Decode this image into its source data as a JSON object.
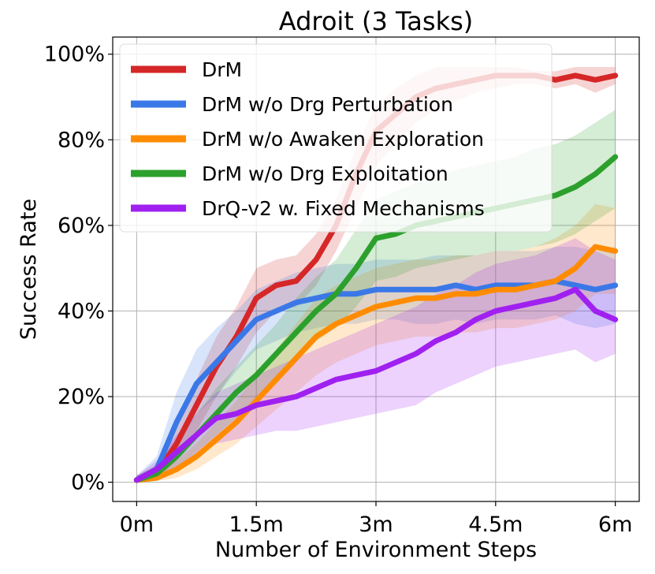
{
  "chart_data": {
    "type": "line",
    "title": "Adroit (3 Tasks)",
    "xlabel": "Number of Environment Steps",
    "ylabel": "Success Rate",
    "xlim": [
      -0.3,
      6.3
    ],
    "ylim": [
      -4.5,
      104
    ],
    "x_ticks": [
      {
        "value": 0,
        "label": "0m"
      },
      {
        "value": 1.5,
        "label": "1.5m"
      },
      {
        "value": 3,
        "label": "3m"
      },
      {
        "value": 4.5,
        "label": "4.5m"
      },
      {
        "value": 6,
        "label": "6m"
      }
    ],
    "y_ticks": [
      {
        "value": 0,
        "label": "0%"
      },
      {
        "value": 20,
        "label": "20%"
      },
      {
        "value": 40,
        "label": "40%"
      },
      {
        "value": 60,
        "label": "60%"
      },
      {
        "value": 80,
        "label": "80%"
      },
      {
        "value": 100,
        "label": "100%"
      }
    ],
    "grid": true,
    "legend_position": "top-left",
    "series": [
      {
        "name": "DrM",
        "color": "#d62728",
        "x": [
          0,
          0.25,
          0.5,
          0.75,
          1.0,
          1.25,
          1.5,
          1.75,
          2.0,
          2.25,
          2.5,
          2.75,
          3.0,
          3.25,
          3.5,
          3.75,
          4.0,
          4.25,
          4.5,
          4.75,
          5.0,
          5.25,
          5.5,
          5.75,
          6.0
        ],
        "y": [
          0.5,
          2,
          9,
          18,
          27,
          34,
          43,
          46,
          47,
          52,
          60,
          72,
          82,
          86,
          90,
          92,
          93,
          94,
          95,
          95,
          95,
          94,
          95,
          94,
          95
        ],
        "band_low": [
          0,
          0.5,
          5,
          12,
          20,
          27,
          35,
          40,
          41,
          46,
          54,
          64,
          74,
          79,
          84,
          87,
          89,
          91,
          92,
          93,
          93,
          92,
          93,
          91,
          93
        ],
        "band_high": [
          1.5,
          4,
          13,
          24,
          34,
          41,
          50,
          52,
          53,
          58,
          66,
          78,
          88,
          92,
          95,
          97,
          97,
          97,
          97,
          97,
          96,
          96,
          97,
          97,
          97
        ]
      },
      {
        "name": "DrM w/o Drg Perturbation",
        "color": "#3b78e7",
        "x": [
          0,
          0.25,
          0.5,
          0.75,
          1.0,
          1.25,
          1.5,
          1.75,
          2.0,
          2.25,
          2.5,
          2.75,
          3.0,
          3.25,
          3.5,
          3.75,
          4.0,
          4.25,
          4.5,
          4.75,
          5.0,
          5.25,
          5.5,
          5.75,
          6.0
        ],
        "y": [
          0.5,
          3,
          14,
          23,
          28,
          33,
          38,
          40,
          42,
          43,
          44,
          44,
          45,
          45,
          45,
          45,
          46,
          45,
          46,
          46,
          46,
          47,
          46,
          45,
          46
        ],
        "band_low": [
          0,
          1,
          8,
          16,
          20,
          26,
          31,
          33,
          35,
          36,
          37,
          37,
          38,
          38,
          37,
          37,
          38,
          37,
          38,
          38,
          38,
          39,
          37,
          36,
          37
        ],
        "band_high": [
          1.5,
          6,
          21,
          31,
          36,
          40,
          45,
          47,
          49,
          50,
          51,
          51,
          52,
          52,
          52,
          53,
          53,
          53,
          54,
          54,
          54,
          55,
          55,
          54,
          55
        ]
      },
      {
        "name": "DrM w/o Awaken Exploration",
        "color": "#ff8c00",
        "x": [
          0,
          0.25,
          0.5,
          0.75,
          1.0,
          1.25,
          1.5,
          1.75,
          2.0,
          2.25,
          2.5,
          2.75,
          3.0,
          3.25,
          3.5,
          3.75,
          4.0,
          4.25,
          4.5,
          4.75,
          5.0,
          5.25,
          5.5,
          5.75,
          6.0
        ],
        "y": [
          0.5,
          1,
          3,
          6,
          10,
          14,
          19,
          24,
          29,
          34,
          37,
          39,
          41,
          42,
          43,
          43,
          44,
          44,
          45,
          45,
          46,
          47,
          50,
          55,
          54
        ],
        "band_low": [
          0,
          0.3,
          1,
          3,
          6,
          9,
          13,
          17,
          21,
          25,
          28,
          30,
          32,
          33,
          34,
          34,
          35,
          35,
          36,
          36,
          37,
          38,
          40,
          44,
          44
        ],
        "band_high": [
          1.2,
          2,
          5,
          9,
          14,
          19,
          25,
          31,
          37,
          43,
          46,
          48,
          50,
          51,
          52,
          52,
          53,
          53,
          54,
          54,
          55,
          57,
          60,
          65,
          64
        ]
      },
      {
        "name": "DrM w/o Drg Exploitation",
        "color": "#2ca02c",
        "x": [
          0,
          0.25,
          0.5,
          0.75,
          1.0,
          1.25,
          1.5,
          1.75,
          2.0,
          2.25,
          2.5,
          2.75,
          3.0,
          3.25,
          3.5,
          3.75,
          4.0,
          4.25,
          4.5,
          4.75,
          5.0,
          5.25,
          5.5,
          5.75,
          6.0
        ],
        "y": [
          0.5,
          2,
          6,
          11,
          16,
          21,
          25,
          30,
          35,
          40,
          44,
          50,
          57,
          58,
          60,
          61,
          62,
          63,
          64,
          65,
          66,
          67,
          69,
          72,
          76
        ],
        "band_low": [
          0,
          0.5,
          3,
          7,
          11,
          15,
          19,
          23,
          28,
          33,
          36,
          41,
          47,
          48,
          50,
          51,
          52,
          53,
          54,
          54,
          55,
          56,
          58,
          61,
          64
        ],
        "band_high": [
          1.5,
          4,
          10,
          16,
          22,
          27,
          32,
          37,
          43,
          48,
          52,
          59,
          66,
          68,
          70,
          71,
          73,
          74,
          75,
          76,
          78,
          79,
          81,
          84,
          87
        ]
      },
      {
        "name": "DrQ-v2 w. Fixed Mechanisms",
        "color": "#a020f0",
        "x": [
          0,
          0.25,
          0.5,
          0.75,
          1.0,
          1.25,
          1.5,
          1.75,
          2.0,
          2.25,
          2.5,
          2.75,
          3.0,
          3.25,
          3.5,
          3.75,
          4.0,
          4.25,
          4.5,
          4.75,
          5.0,
          5.25,
          5.5,
          5.75,
          6.0
        ],
        "y": [
          0.5,
          3,
          7,
          11,
          15,
          16,
          18,
          19,
          20,
          22,
          24,
          25,
          26,
          28,
          30,
          33,
          35,
          38,
          40,
          41,
          42,
          43,
          45,
          40,
          38
        ],
        "band_low": [
          0,
          1,
          3,
          6,
          9,
          10,
          11,
          12,
          12,
          13,
          14,
          15,
          16,
          17,
          18,
          21,
          23,
          25,
          27,
          28,
          29,
          30,
          31,
          28,
          30
        ],
        "band_high": [
          1.5,
          5,
          11,
          16,
          21,
          23,
          25,
          27,
          29,
          31,
          33,
          35,
          37,
          39,
          41,
          44,
          46,
          49,
          51,
          52,
          53,
          55,
          57,
          54,
          52
        ]
      }
    ]
  }
}
